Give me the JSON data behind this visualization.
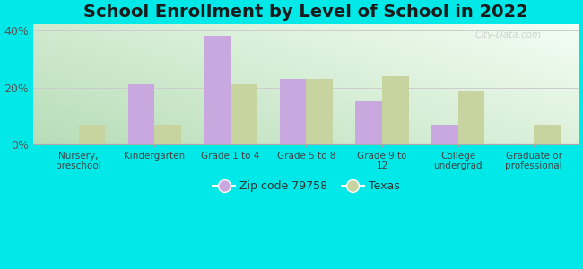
{
  "title": "School Enrollment by Level of School in 2022",
  "categories": [
    "Nursery,\npreschool",
    "Kindergarten",
    "Grade 1 to 4",
    "Grade 5 to 8",
    "Grade 9 to\n12",
    "College\nundergrad",
    "Graduate or\nprofessional"
  ],
  "zip_values": [
    0,
    21,
    38,
    23,
    15,
    7,
    0
  ],
  "texas_values": [
    7,
    7,
    21,
    23,
    24,
    19,
    7
  ],
  "zip_color": "#c9a8e0",
  "texas_color": "#c8d4a0",
  "background_color": "#00e8e8",
  "grad_color_bottom_left": "#b8ddb8",
  "grad_color_top_right": "#f4fef4",
  "ylim": [
    0,
    42
  ],
  "yticks": [
    0,
    20,
    40
  ],
  "ytick_labels": [
    "0%",
    "20%",
    "40%"
  ],
  "zip_label": "Zip code 79758",
  "texas_label": "Texas",
  "bar_width": 0.35,
  "title_fontsize": 14,
  "watermark": "City-Data.com",
  "legend_marker_size": 10
}
